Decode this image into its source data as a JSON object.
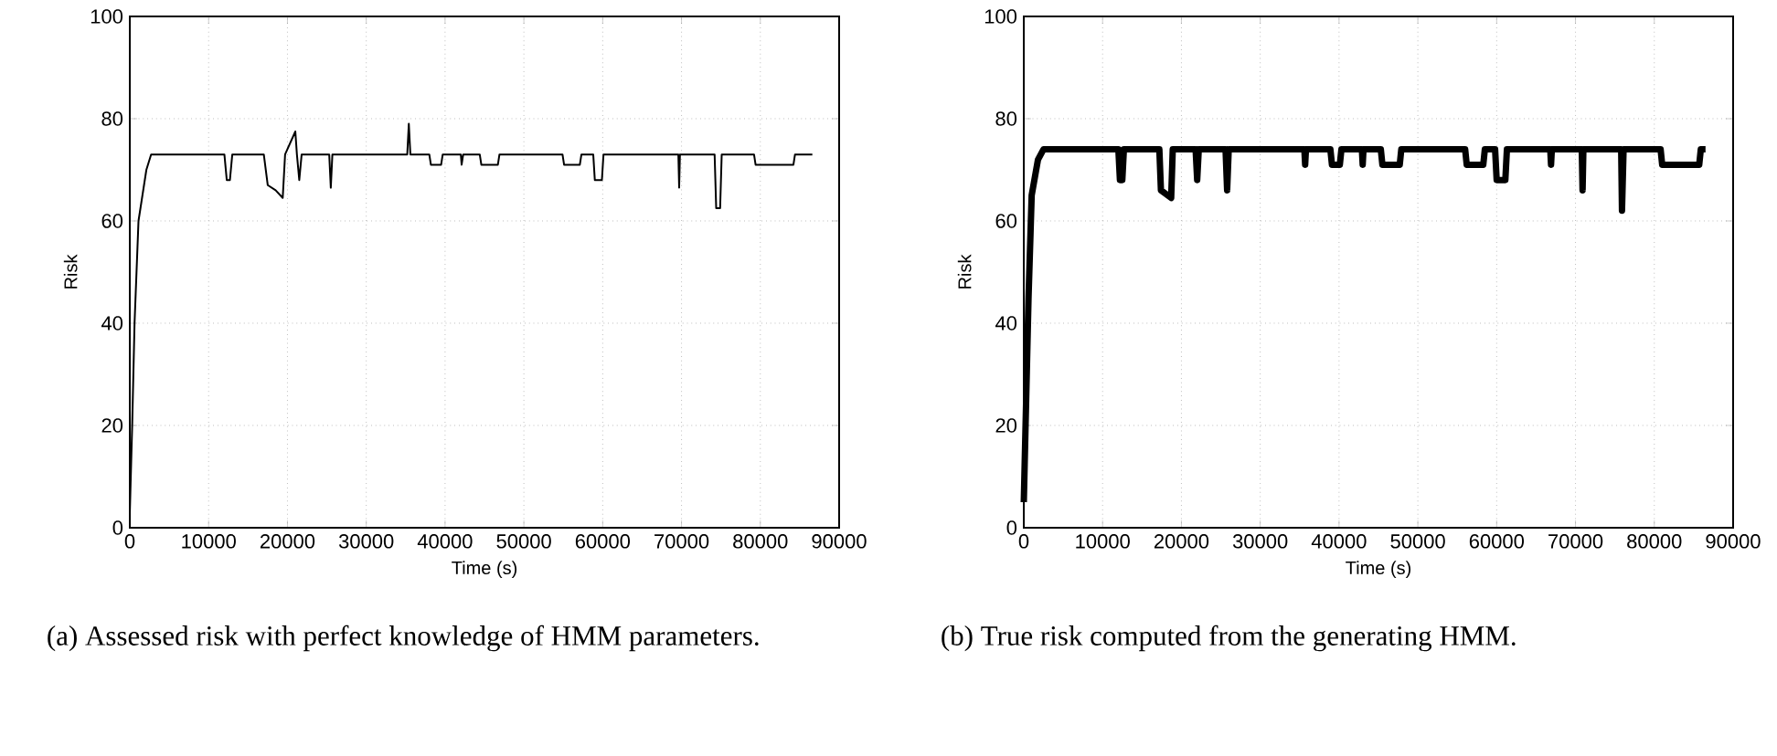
{
  "chart_data": [
    {
      "type": "line",
      "xlabel": "Time (s)",
      "ylabel": "Risk",
      "xlim": [
        0,
        90000
      ],
      "ylim": [
        0,
        100
      ],
      "xticks": [
        0,
        10000,
        20000,
        30000,
        40000,
        50000,
        60000,
        70000,
        80000,
        90000
      ],
      "yticks": [
        0,
        20,
        40,
        60,
        80,
        100
      ],
      "grid": true,
      "marker": "none",
      "line_style": "solid",
      "series": [
        {
          "color": "#000000",
          "x": [
            0,
            300,
            600,
            1100,
            2100,
            2700,
            12000,
            12300,
            12700,
            13000,
            17000,
            17500,
            18500,
            19400,
            19700,
            21000,
            21200,
            21500,
            21800,
            25300,
            25500,
            25700,
            35200,
            35400,
            35600,
            38000,
            38200,
            39500,
            39700,
            42000,
            42100,
            42300,
            44400,
            44600,
            46700,
            46900,
            54900,
            55100,
            57100,
            57300,
            58800,
            59000,
            59900,
            60100,
            69600,
            69700,
            69800,
            74200,
            74400,
            74900,
            75100,
            79200,
            79400,
            84200,
            84400,
            86600
          ],
          "values": [
            3,
            20,
            40,
            60,
            70,
            73,
            73,
            68,
            68,
            73,
            73,
            67,
            66,
            64.5,
            73,
            77.5,
            73,
            68,
            73,
            73,
            66.5,
            73,
            73,
            79,
            73,
            73,
            71,
            71,
            73,
            73,
            71,
            73,
            73,
            71,
            71,
            73,
            73,
            71,
            71,
            73,
            73,
            68,
            68,
            73,
            73,
            66.5,
            73,
            73,
            62.5,
            62.5,
            73,
            73,
            71,
            71,
            73,
            73
          ]
        }
      ],
      "annotations": [
        "(a) Assessed risk with perfect knowledge of HMM parameters."
      ]
    },
    {
      "type": "line",
      "xlabel": "Time (s)",
      "ylabel": "Risk",
      "xlim": [
        0,
        90000
      ],
      "ylim": [
        0,
        100
      ],
      "xticks": [
        0,
        10000,
        20000,
        30000,
        40000,
        50000,
        60000,
        70000,
        80000,
        90000
      ],
      "yticks": [
        0,
        20,
        40,
        60,
        80,
        100
      ],
      "grid": true,
      "marker": "none",
      "line_style": "solid",
      "series": [
        {
          "color": "#000000",
          "x": [
            0,
            300,
            600,
            1000,
            1800,
            2500,
            12000,
            12200,
            12500,
            12700,
            17200,
            17400,
            18700,
            18900,
            21800,
            22000,
            22200,
            25600,
            25800,
            26000,
            35600,
            35700,
            35800,
            38900,
            39100,
            40100,
            40300,
            42900,
            43000,
            43100,
            45300,
            45500,
            47700,
            47900,
            56000,
            56200,
            58300,
            58500,
            59800,
            60000,
            61100,
            61300,
            66800,
            66900,
            67000,
            70800,
            70900,
            71000,
            75800,
            75900,
            76100,
            80800,
            81000,
            85700,
            85900,
            86500
          ],
          "values": [
            5,
            25,
            45,
            65,
            72,
            74,
            74,
            68,
            68,
            74,
            74,
            66,
            64.5,
            74,
            74,
            68,
            74,
            74,
            66,
            74,
            74,
            71,
            74,
            74,
            71,
            71,
            74,
            74,
            71,
            74,
            74,
            71,
            71,
            74,
            74,
            71,
            71,
            74,
            74,
            68,
            68,
            74,
            74,
            71,
            74,
            74,
            66,
            74,
            74,
            62,
            74,
            74,
            71,
            71,
            74,
            74
          ]
        }
      ],
      "annotations": [
        "(b) True risk computed from the generating HMM."
      ]
    }
  ]
}
